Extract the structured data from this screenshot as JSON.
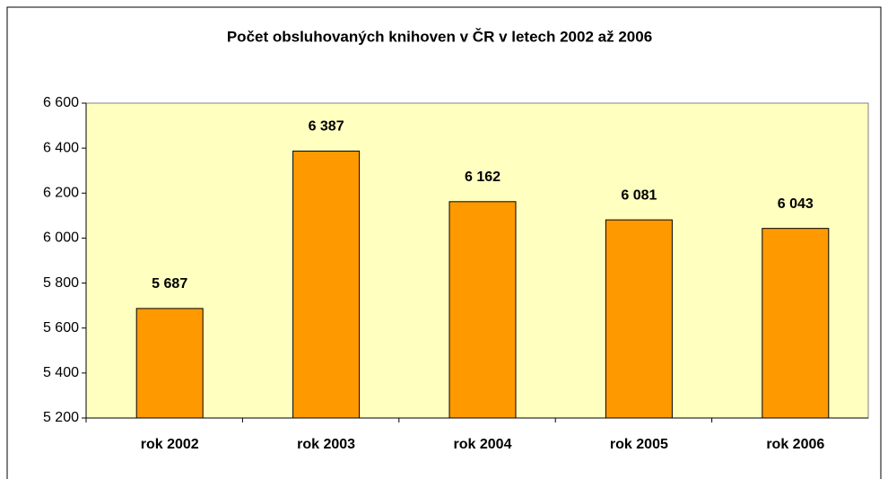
{
  "chart_data": {
    "type": "bar",
    "title": "Počet obsluhovaných knihoven v ČR v letech 2002 až 2006",
    "categories": [
      "rok 2002",
      "rok 2003",
      "rok 2004",
      "rok 2005",
      "rok 2006"
    ],
    "values": [
      5687,
      6387,
      6162,
      6081,
      6043
    ],
    "value_labels": [
      "5 687",
      "6 387",
      "6 162",
      "6 081",
      "6 043"
    ],
    "color": "#ff9900",
    "plot_background": "#ffffc0",
    "ylim": [
      5200,
      6600
    ],
    "yticks": [
      {
        "value": 5200,
        "label": "5 200"
      },
      {
        "value": 5400,
        "label": "5 400"
      },
      {
        "value": 5600,
        "label": "5 600"
      },
      {
        "value": 5800,
        "label": "5 800"
      },
      {
        "value": 6000,
        "label": "6 000"
      },
      {
        "value": 6200,
        "label": "6 200"
      },
      {
        "value": 6400,
        "label": "6 400"
      },
      {
        "value": 6600,
        "label": "6 600"
      }
    ],
    "grid": false
  }
}
